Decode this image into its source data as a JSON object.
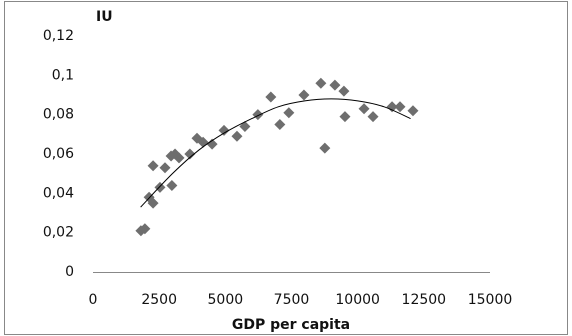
{
  "chart_data": {
    "type": "scatter",
    "y_label": "IU",
    "x_label": "GDP per capita",
    "color": "#6e6e6e",
    "x": [
      1810,
      1960,
      2120,
      2270,
      2270,
      2530,
      2720,
      2980,
      2950,
      3100,
      3250,
      3660,
      3930,
      4160,
      4500,
      4950,
      5440,
      5740,
      6230,
      6720,
      7060,
      7400,
      7970,
      8610,
      8760,
      9140,
      9480,
      9520,
      10240,
      10580,
      11300,
      11600,
      12090
    ],
    "y": [
      0.021,
      0.022,
      0.038,
      0.035,
      0.054,
      0.043,
      0.053,
      0.044,
      0.059,
      0.06,
      0.058,
      0.06,
      0.068,
      0.066,
      0.065,
      0.072,
      0.069,
      0.074,
      0.08,
      0.089,
      0.075,
      0.081,
      0.09,
      0.096,
      0.063,
      0.095,
      0.092,
      0.079,
      0.083,
      0.079,
      0.084,
      0.084,
      0.082
    ],
    "trendline": {
      "color": "#000000",
      "x": [
        1800,
        3000,
        4000,
        5000,
        6000,
        7000,
        8000,
        9000,
        10000,
        11000,
        12000
      ],
      "y": [
        0.033,
        0.05,
        0.062,
        0.071,
        0.078,
        0.084,
        0.087,
        0.088,
        0.087,
        0.084,
        0.078
      ]
    },
    "xlim": [
      0,
      15000
    ],
    "xticks": [
      0,
      2500,
      5000,
      7500,
      10000,
      12500,
      15000
    ],
    "ylim": [
      0,
      0.12
    ],
    "yticks": [
      0,
      {
        "value": 0.02,
        "label": "0,02"
      },
      {
        "value": 0.04,
        "label": "0,04"
      },
      {
        "value": 0.06,
        "label": "0,06"
      },
      {
        "value": 0.08,
        "label": "0,08"
      },
      {
        "value": 0.1,
        "label": "0,1"
      },
      {
        "value": 0.12,
        "label": "0,12"
      }
    ]
  }
}
